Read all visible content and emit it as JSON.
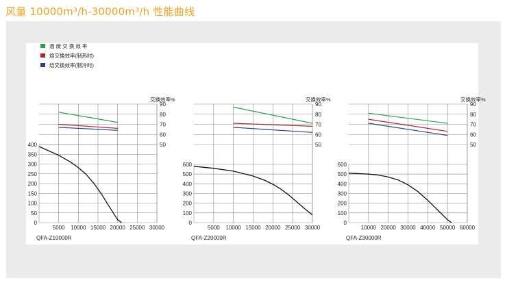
{
  "page": {
    "title": "风量 10000m³/h-30000m³/h 性能曲线"
  },
  "legend": [
    {
      "label": "温 度 交 换 效 率",
      "color": "#2e9e4a"
    },
    {
      "label": "焓交换效率(制热时)",
      "color": "#b0252a"
    },
    {
      "label": "焓交换效率(制冷时)",
      "color": "#2c3f8e"
    }
  ],
  "chart_data": [
    {
      "type": "line",
      "model": "QFA-Z10000R",
      "xlim": [
        0,
        30000
      ],
      "x_ticks": [
        "5000",
        "10000",
        "15000",
        "20000",
        "25000",
        "30000"
      ],
      "ylim": [
        0,
        400
      ],
      "y_ticks": [
        "0",
        "50",
        "100",
        "150",
        "200",
        "250",
        "300",
        "350",
        "400"
      ],
      "eff_label": "交换效率%",
      "eff_ylim": [
        50,
        90
      ],
      "eff_ticks": [
        "50",
        "60",
        "70",
        "80",
        "90"
      ],
      "pressure_curve": {
        "x": [
          0,
          5000,
          8000,
          10000,
          12000,
          14000,
          16000,
          18000,
          20000,
          21000
        ],
        "y": [
          390,
          345,
          310,
          282,
          247,
          200,
          143,
          78,
          15,
          -20
        ]
      },
      "efficiency_series": [
        {
          "color": "#2e9e4a",
          "x": [
            5000,
            20000
          ],
          "y": [
            82,
            72
          ]
        },
        {
          "color": "#b0252a",
          "x": [
            5000,
            20000
          ],
          "y": [
            70,
            66
          ]
        },
        {
          "color": "#2c3f8e",
          "x": [
            5000,
            20000
          ],
          "y": [
            67,
            64
          ]
        }
      ]
    },
    {
      "type": "line",
      "model": "QFA-Z20000R",
      "xlim": [
        0,
        30000
      ],
      "x_ticks": [
        "5000",
        "10000",
        "15000",
        "20000",
        "25000",
        "30000"
      ],
      "ylim": [
        0,
        600
      ],
      "y_ticks": [
        "0",
        "100",
        "200",
        "300",
        "400",
        "500",
        "600"
      ],
      "eff_label": "交换效率%",
      "eff_ylim": [
        50,
        90
      ],
      "eff_ticks": [
        "50",
        "60",
        "70",
        "80",
        "90"
      ],
      "pressure_curve": {
        "x": [
          0,
          5000,
          10000,
          15000,
          18000,
          20000,
          22000,
          24000,
          26000,
          28000,
          30000
        ],
        "y": [
          580,
          560,
          530,
          480,
          435,
          395,
          345,
          285,
          215,
          145,
          80
        ]
      },
      "efficiency_series": [
        {
          "color": "#2e9e4a",
          "x": [
            10000,
            30000
          ],
          "y": [
            87,
            71
          ]
        },
        {
          "color": "#b0252a",
          "x": [
            10000,
            30000
          ],
          "y": [
            71,
            68
          ]
        },
        {
          "color": "#2c3f8e",
          "x": [
            10000,
            30000
          ],
          "y": [
            67,
            62
          ]
        }
      ]
    },
    {
      "type": "line",
      "model": "QFA-Z30000R",
      "xlim": [
        0,
        60000
      ],
      "x_ticks": [
        "10000",
        "20000",
        "30000",
        "40000",
        "50000",
        "60000"
      ],
      "ylim": [
        0,
        600
      ],
      "y_ticks": [
        "0",
        "100",
        "200",
        "300",
        "400",
        "500",
        "600"
      ],
      "eff_label": "交换效率%",
      "eff_ylim": [
        50,
        90
      ],
      "eff_ticks": [
        "50",
        "60",
        "70",
        "80",
        "90"
      ],
      "pressure_curve": {
        "x": [
          0,
          10000,
          15000,
          20000,
          25000,
          30000,
          35000,
          40000,
          45000,
          50000,
          52000
        ],
        "y": [
          510,
          500,
          490,
          470,
          440,
          390,
          320,
          230,
          130,
          30,
          -10
        ]
      },
      "efficiency_series": [
        {
          "color": "#2e9e4a",
          "x": [
            10000,
            50000
          ],
          "y": [
            81,
            71
          ]
        },
        {
          "color": "#b0252a",
          "x": [
            10000,
            50000
          ],
          "y": [
            75,
            63
          ]
        },
        {
          "color": "#2c3f8e",
          "x": [
            10000,
            50000
          ],
          "y": [
            71,
            59
          ]
        }
      ]
    }
  ]
}
